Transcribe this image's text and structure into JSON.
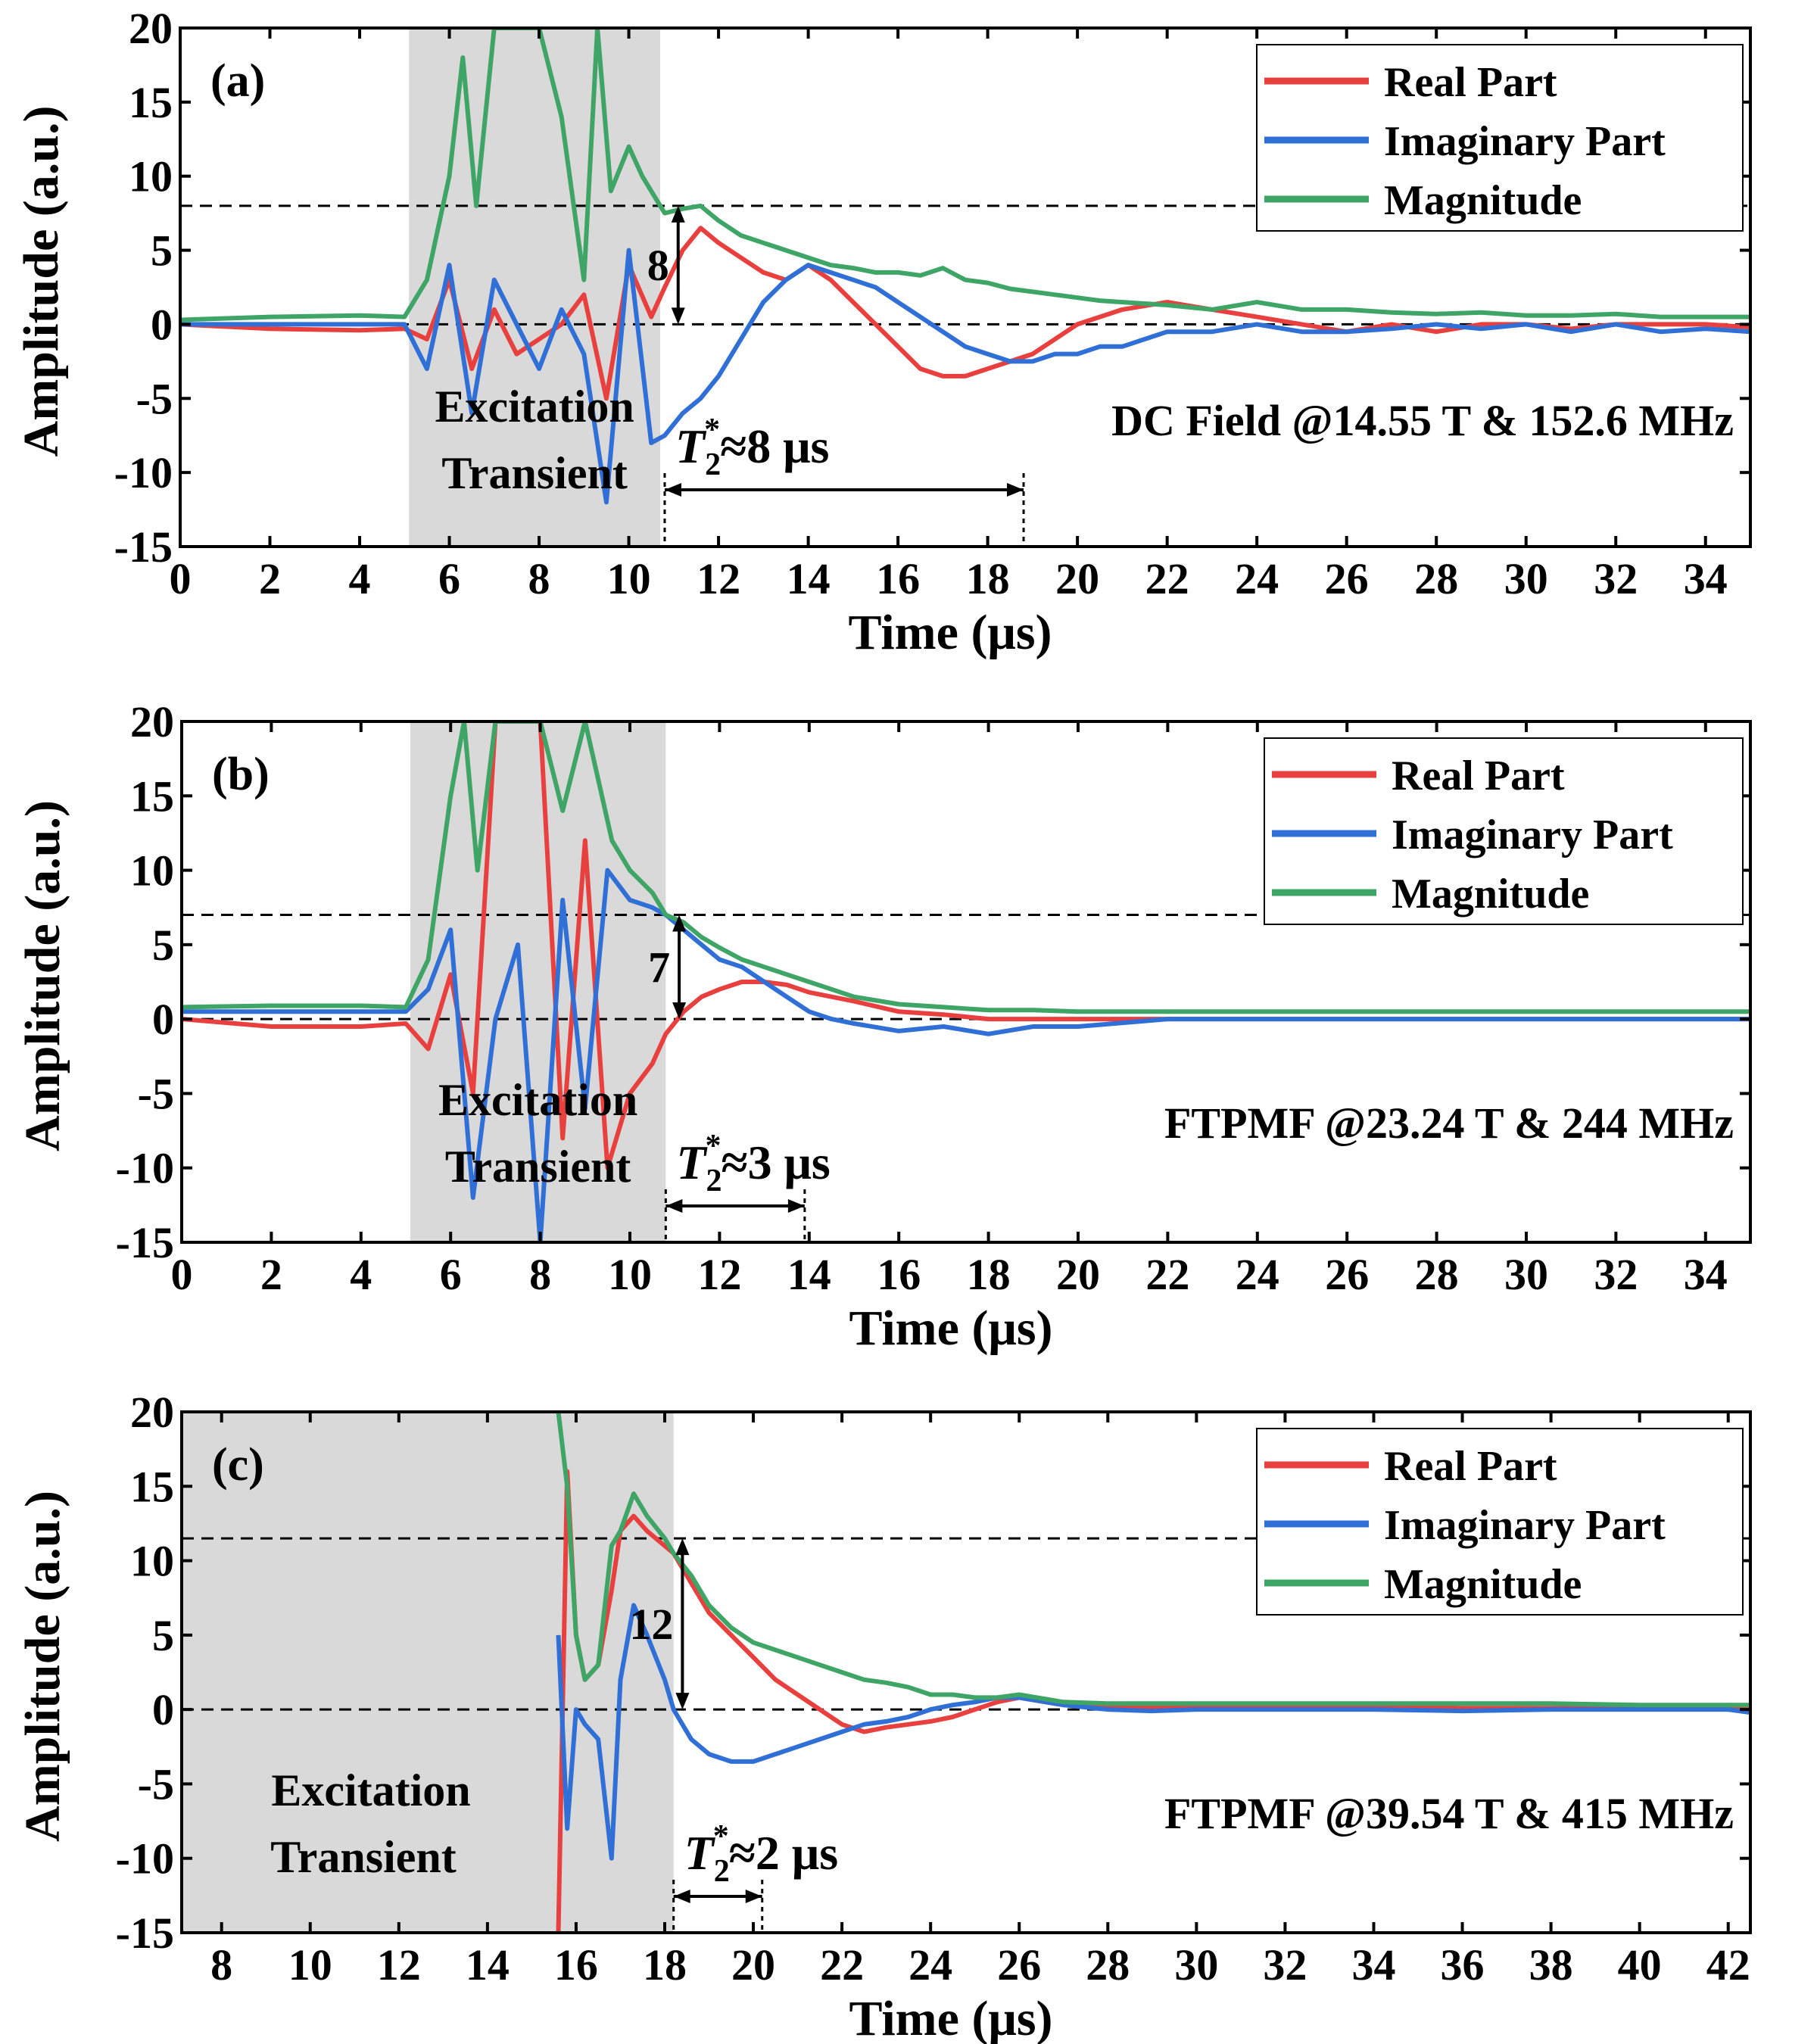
{
  "colors": {
    "real": "#e8403f",
    "imaginary": "#2f6fd6",
    "magnitude": "#3fa566",
    "shade": "#d9d9d9",
    "axis": "#000000"
  },
  "legend": {
    "real": "Real Part",
    "imaginary": "Imaginary Part",
    "magnitude": "Magnitude"
  },
  "chart_data": [
    {
      "type": "line",
      "panel_label": "(a)",
      "title": "DC Field @14.55 T & 152.6 MHz",
      "xlabel": "Time (μs)",
      "ylabel": "Amplitude (a.u.)",
      "xlim": [
        0,
        35
      ],
      "ylim": [
        -15,
        20
      ],
      "xticks": [
        "0",
        "2",
        "4",
        "6",
        "8",
        "10",
        "12",
        "14",
        "16",
        "18",
        "20",
        "22",
        "24",
        "26",
        "28",
        "30",
        "32",
        "34"
      ],
      "yticks": [
        "-15",
        "-10",
        "-5",
        "0",
        "5",
        "10",
        "15",
        "20"
      ],
      "xtick_values": [
        0,
        2,
        4,
        6,
        8,
        10,
        12,
        14,
        16,
        18,
        20,
        22,
        24,
        26,
        28,
        30,
        32,
        34
      ],
      "ytick_values": [
        -15,
        -10,
        -5,
        0,
        5,
        10,
        15,
        20
      ],
      "excitation_region": [
        5.1,
        10.7
      ],
      "excitation_label": [
        "Excitation",
        "Transient"
      ],
      "reference_level": 8,
      "amplitude_label": "8",
      "t2_span": [
        10.8,
        18.8
      ],
      "t2_label": "≈8 μs",
      "series": [
        {
          "name": "Real Part",
          "key": "real",
          "x": [
            0,
            2,
            4,
            5,
            5.5,
            6,
            6.5,
            7,
            7.5,
            8,
            8.5,
            9,
            9.5,
            10,
            10.5,
            10.8,
            11.2,
            11.6,
            12,
            12.5,
            13,
            13.5,
            14,
            14.5,
            15,
            15.5,
            16,
            16.5,
            17,
            17.5,
            18,
            18.5,
            19,
            19.5,
            20,
            20.5,
            21,
            22,
            23,
            24,
            25,
            26,
            27,
            28,
            29,
            30,
            31,
            32,
            33,
            34,
            35
          ],
          "y": [
            0,
            -0.3,
            -0.4,
            -0.3,
            -1,
            3,
            -3,
            1,
            -2,
            -1,
            0,
            2,
            -5,
            4,
            0.5,
            2.5,
            5,
            6.5,
            5.5,
            4.5,
            3.5,
            3,
            4,
            3,
            1.5,
            0,
            -1.5,
            -3,
            -3.5,
            -3.5,
            -3,
            -2.5,
            -2,
            -1,
            0,
            0.5,
            1,
            1.5,
            1,
            0.5,
            0,
            -0.5,
            0,
            -0.5,
            0,
            0,
            -0.3,
            0,
            0,
            0,
            -0.2
          ]
        },
        {
          "name": "Imaginary Part",
          "key": "imaginary",
          "x": [
            0,
            2,
            4,
            5,
            5.5,
            6,
            6.5,
            7,
            7.5,
            8,
            8.5,
            9,
            9.5,
            10,
            10.5,
            10.8,
            11.2,
            11.6,
            12,
            12.5,
            13,
            13.5,
            14,
            14.5,
            15,
            15.5,
            16,
            16.5,
            17,
            17.5,
            18,
            18.5,
            19,
            19.5,
            20,
            20.5,
            21,
            22,
            23,
            24,
            25,
            26,
            27,
            28,
            29,
            30,
            31,
            32,
            33,
            34,
            35
          ],
          "y": [
            0,
            0,
            0,
            0,
            -3,
            4,
            -6,
            3,
            0,
            -3,
            1,
            -2,
            -12,
            5,
            -8,
            -7.5,
            -6,
            -5,
            -3.5,
            -1,
            1.5,
            3,
            4,
            3.5,
            3,
            2.5,
            1.5,
            0.5,
            -0.5,
            -1.5,
            -2,
            -2.5,
            -2.5,
            -2,
            -2,
            -1.5,
            -1.5,
            -0.5,
            -0.5,
            0,
            -0.5,
            -0.5,
            -0.3,
            0,
            -0.3,
            0,
            -0.5,
            0,
            -0.5,
            -0.3,
            -0.5
          ]
        },
        {
          "name": "Magnitude",
          "key": "magnitude",
          "x": [
            0,
            2,
            4,
            5,
            5.5,
            6,
            6.3,
            6.6,
            7,
            7.5,
            8,
            8.5,
            9,
            9.3,
            9.6,
            10,
            10.3,
            10.6,
            10.8,
            11.2,
            11.6,
            12,
            12.5,
            13,
            13.5,
            14,
            14.5,
            15,
            15.5,
            16,
            16.5,
            17,
            17.5,
            18,
            18.5,
            19,
            19.5,
            20,
            20.5,
            21,
            22,
            23,
            24,
            25,
            26,
            27,
            28,
            29,
            30,
            31,
            32,
            33,
            34,
            35
          ],
          "y": [
            0.3,
            0.5,
            0.6,
            0.5,
            3,
            10,
            18,
            8,
            20,
            20,
            20,
            14,
            3,
            20,
            9,
            12,
            10,
            8.5,
            7.5,
            7.8,
            8,
            7,
            6,
            5.5,
            5,
            4.5,
            4,
            3.8,
            3.5,
            3.5,
            3.3,
            3.8,
            3,
            2.8,
            2.4,
            2.2,
            2,
            1.8,
            1.6,
            1.5,
            1.3,
            1,
            1.5,
            1,
            1,
            0.8,
            0.7,
            0.8,
            0.6,
            0.6,
            0.7,
            0.5,
            0.5,
            0.5
          ]
        }
      ]
    },
    {
      "type": "line",
      "panel_label": "(b)",
      "title": "FTPMF @23.24 T & 244 MHz",
      "xlabel": "Time (μs)",
      "ylabel": "Amplitude (a.u.)",
      "xlim": [
        0,
        35
      ],
      "ylim": [
        -15,
        20
      ],
      "xticks": [
        "0",
        "2",
        "4",
        "6",
        "8",
        "10",
        "12",
        "14",
        "16",
        "18",
        "20",
        "22",
        "24",
        "26",
        "28",
        "30",
        "32",
        "34"
      ],
      "yticks": [
        "-15",
        "-10",
        "-5",
        "0",
        "5",
        "10",
        "15",
        "20"
      ],
      "xtick_values": [
        0,
        2,
        4,
        6,
        8,
        10,
        12,
        14,
        16,
        18,
        20,
        22,
        24,
        26,
        28,
        30,
        32,
        34
      ],
      "ytick_values": [
        -15,
        -10,
        -5,
        0,
        5,
        10,
        15,
        20
      ],
      "excitation_region": [
        5.1,
        10.8
      ],
      "excitation_label": [
        "Excitation",
        "Transient"
      ],
      "reference_level": 7,
      "amplitude_label": "7",
      "t2_span": [
        10.8,
        13.9
      ],
      "t2_label": "≈3 μs",
      "series": [
        {
          "name": "Real Part",
          "key": "real",
          "x": [
            0,
            2,
            4,
            5,
            5.5,
            6,
            6.5,
            7,
            7.5,
            8,
            8.5,
            9,
            9.5,
            10,
            10.5,
            10.8,
            11.2,
            11.6,
            12,
            12.5,
            13,
            13.5,
            14,
            14.5,
            15,
            16,
            17,
            18,
            19,
            20,
            22,
            24,
            26,
            28,
            30,
            32,
            34,
            35
          ],
          "y": [
            0,
            -0.5,
            -0.5,
            -0.3,
            -2,
            3,
            -5,
            20,
            20,
            20,
            -8,
            12,
            -10,
            -5,
            -3,
            -1,
            0.5,
            1.5,
            2,
            2.5,
            2.5,
            2.3,
            1.8,
            1.5,
            1.2,
            0.5,
            0.3,
            0,
            0,
            0,
            0,
            0,
            0,
            0,
            0,
            0,
            0,
            0
          ]
        },
        {
          "name": "Imaginary Part",
          "key": "imaginary",
          "x": [
            0,
            2,
            4,
            5,
            5.5,
            6,
            6.5,
            7,
            7.5,
            8,
            8.5,
            9,
            9.5,
            10,
            10.5,
            10.8,
            11.2,
            11.6,
            12,
            12.5,
            13,
            13.5,
            14,
            14.5,
            15,
            16,
            17,
            18,
            19,
            20,
            22,
            24,
            26,
            28,
            30,
            32,
            34,
            35
          ],
          "y": [
            0.5,
            0.5,
            0.5,
            0.5,
            2,
            6,
            -12,
            0,
            5,
            -15,
            8,
            -6,
            10,
            8,
            7.5,
            7,
            6,
            5,
            4,
            3.5,
            2.5,
            1.5,
            0.5,
            0,
            -0.3,
            -0.8,
            -0.5,
            -1,
            -0.5,
            -0.5,
            0,
            0,
            0,
            0,
            0,
            0,
            0,
            0
          ]
        },
        {
          "name": "Magnitude",
          "key": "magnitude",
          "x": [
            0,
            2,
            4,
            5,
            5.5,
            6,
            6.3,
            6.6,
            7,
            7.5,
            8,
            8.5,
            9,
            9.3,
            9.6,
            10,
            10.5,
            10.8,
            11.2,
            11.6,
            12,
            12.5,
            13,
            13.5,
            14,
            14.5,
            15,
            16,
            17,
            18,
            19,
            20,
            22,
            24,
            26,
            28,
            30,
            32,
            34,
            35
          ],
          "y": [
            0.8,
            0.9,
            0.9,
            0.8,
            4,
            15,
            20,
            10,
            20,
            20,
            20,
            14,
            20,
            16,
            12,
            10,
            8.5,
            7,
            6.5,
            5.5,
            4.8,
            4,
            3.5,
            3,
            2.5,
            2,
            1.5,
            1,
            0.8,
            0.6,
            0.6,
            0.5,
            0.5,
            0.5,
            0.5,
            0.5,
            0.5,
            0.5,
            0.5,
            0.5
          ]
        }
      ]
    },
    {
      "type": "line",
      "panel_label": "(c)",
      "title": "FTPMF @39.54 T & 415 MHz",
      "xlabel": "Time (μs)",
      "ylabel": "Amplitude (a.u.)",
      "xlim": [
        7.1,
        42.5
      ],
      "ylim": [
        -15,
        20
      ],
      "xticks": [
        "8",
        "10",
        "12",
        "14",
        "16",
        "18",
        "20",
        "22",
        "24",
        "26",
        "28",
        "30",
        "32",
        "34",
        "36",
        "38",
        "40",
        "42"
      ],
      "yticks": [
        "-15",
        "-10",
        "-5",
        "0",
        "5",
        "10",
        "15",
        "20"
      ],
      "xtick_values": [
        8,
        10,
        12,
        14,
        16,
        18,
        20,
        22,
        24,
        26,
        28,
        30,
        32,
        34,
        36,
        38,
        40,
        42
      ],
      "ytick_values": [
        -15,
        -10,
        -5,
        0,
        5,
        10,
        15,
        20
      ],
      "excitation_region": [
        7.1,
        18.2
      ],
      "excitation_label": [
        "Excitation",
        "Transient"
      ],
      "reference_level": 11.5,
      "amplitude_label": "12",
      "t2_span": [
        18.2,
        20.2
      ],
      "t2_label": "≈2 μs",
      "series": [
        {
          "name": "Real Part",
          "key": "real",
          "x": [
            15.6,
            15.8,
            16.0,
            16.2,
            16.5,
            16.8,
            17.0,
            17.3,
            17.6,
            18.0,
            18.2,
            18.6,
            19.0,
            19.5,
            20.0,
            20.5,
            21.0,
            21.5,
            22.0,
            22.5,
            23.0,
            23.5,
            24.0,
            24.5,
            25.0,
            25.5,
            26.0,
            27,
            28,
            29,
            30,
            32,
            34,
            36,
            38,
            40,
            42,
            42.5
          ],
          "y": [
            -15,
            16,
            5,
            2,
            3,
            8,
            12,
            13,
            12,
            11,
            10.5,
            8.5,
            6.5,
            5,
            3.5,
            2,
            1,
            0,
            -1,
            -1.5,
            -1.2,
            -1,
            -0.8,
            -0.5,
            0,
            0.5,
            0.8,
            0.3,
            0.2,
            0.2,
            0.2,
            0.2,
            0.2,
            0.1,
            0.1,
            0.1,
            0.1,
            0
          ]
        },
        {
          "name": "Imaginary Part",
          "key": "imaginary",
          "x": [
            15.6,
            15.8,
            16.0,
            16.2,
            16.5,
            16.8,
            17.0,
            17.3,
            17.6,
            18.0,
            18.2,
            18.6,
            19.0,
            19.5,
            20.0,
            20.5,
            21.0,
            21.5,
            22.0,
            22.5,
            23.0,
            23.5,
            24.0,
            24.5,
            25.0,
            25.5,
            26.0,
            27,
            28,
            29,
            30,
            32,
            34,
            36,
            38,
            40,
            42,
            42.5
          ],
          "y": [
            5,
            -8,
            0,
            -1,
            -2,
            -10,
            2,
            7,
            5,
            2,
            0,
            -2,
            -3,
            -3.5,
            -3.5,
            -3,
            -2.5,
            -2,
            -1.5,
            -1,
            -0.8,
            -0.5,
            0,
            0.3,
            0.5,
            0.8,
            0.8,
            0.3,
            0,
            -0.1,
            0,
            0,
            0,
            -0.1,
            0,
            0,
            0,
            -0.2
          ]
        },
        {
          "name": "Magnitude",
          "key": "magnitude",
          "x": [
            15.6,
            15.8,
            16.0,
            16.2,
            16.5,
            16.8,
            17.0,
            17.3,
            17.6,
            18.0,
            18.2,
            18.6,
            19.0,
            19.5,
            20.0,
            20.5,
            21.0,
            21.5,
            22.0,
            22.5,
            23.0,
            23.5,
            24.0,
            24.5,
            25.0,
            25.5,
            26.0,
            27,
            28,
            29,
            30,
            32,
            34,
            36,
            38,
            40,
            42,
            42.5
          ],
          "y": [
            20,
            15,
            5,
            2,
            3,
            11,
            12,
            14.5,
            13,
            11.5,
            10.5,
            9,
            7,
            5.5,
            4.5,
            4,
            3.5,
            3,
            2.5,
            2,
            1.8,
            1.5,
            1,
            1,
            0.8,
            0.8,
            1,
            0.5,
            0.4,
            0.4,
            0.4,
            0.4,
            0.4,
            0.4,
            0.4,
            0.3,
            0.3,
            0.3
          ]
        }
      ]
    }
  ]
}
